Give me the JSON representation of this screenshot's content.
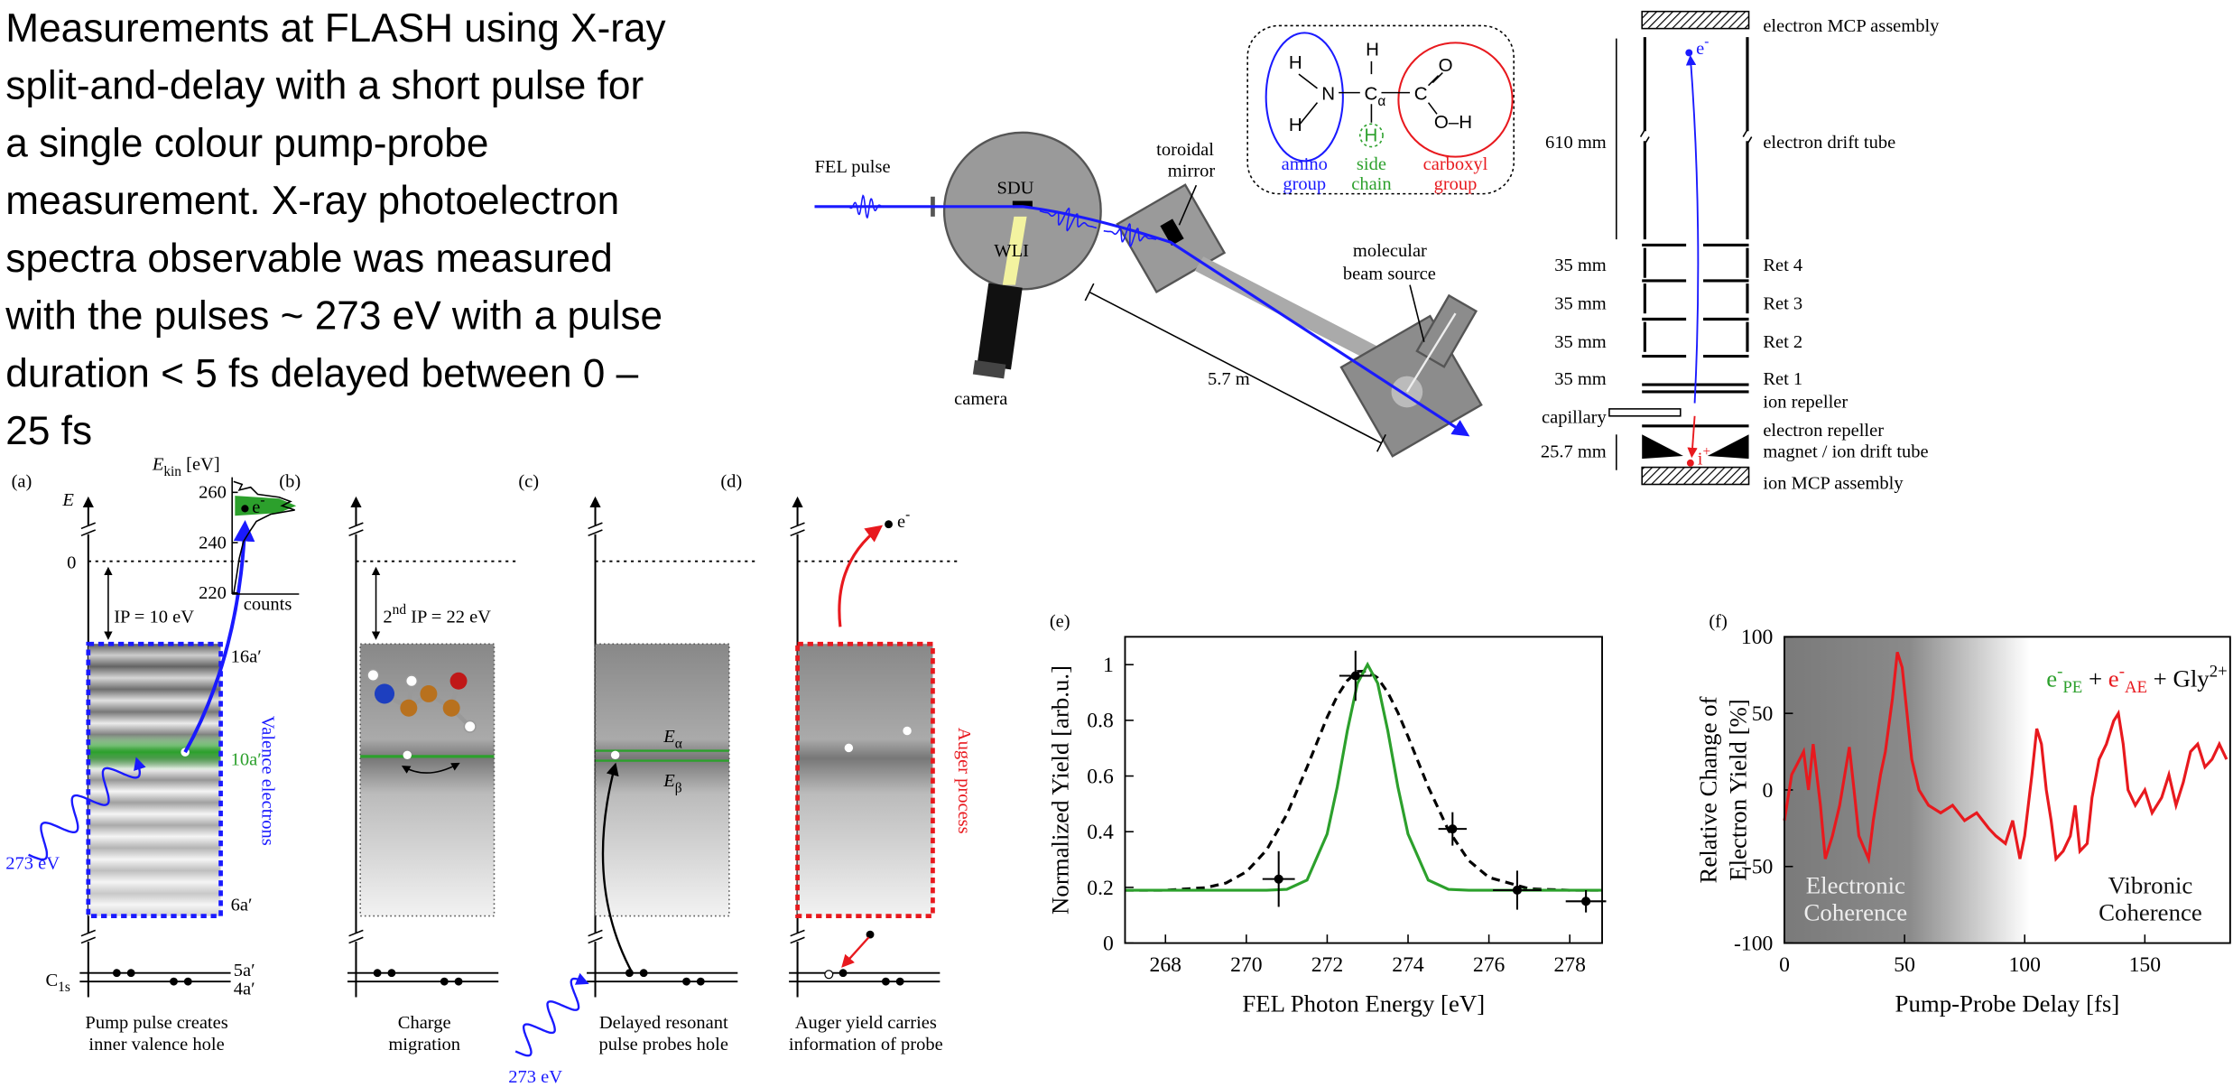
{
  "intro": {
    "lines": [
      "Measurements at FLASH using X-ray",
      "split-and-delay with a short pulse for",
      "a single colour pump-probe",
      "measurement.  X-ray photoelectron",
      "spectra observable was measured",
      "with the pulses ~ 273 eV with a pulse",
      "duration < 5 fs delayed between 0 –",
      "25 fs"
    ]
  },
  "setup": {
    "fel_pulse": "FEL pulse",
    "sdu": "SDU",
    "wli": "WLI",
    "camera": "camera",
    "toroidal_mirror": [
      "toroidal",
      "mirror"
    ],
    "molecular_beam_source": [
      "molecular",
      "beam source"
    ],
    "distance": "5.7 m",
    "molecule": {
      "atoms": [
        "H",
        "N",
        "H",
        "C",
        "α",
        "H",
        "C",
        "O",
        "O–H",
        "H"
      ],
      "groups": [
        [
          "amino",
          "group"
        ],
        [
          "side",
          "chain"
        ],
        [
          "carboxyl",
          "group"
        ]
      ]
    }
  },
  "spectrometer": {
    "right_labels": [
      "electron MCP assembly",
      "electron drift tube",
      "Ret 4",
      "Ret 3",
      "Ret 2",
      "Ret 1",
      "ion repeller",
      "electron repeller",
      "magnet / ion drift tube",
      "ion MCP assembly"
    ],
    "left_labels": [
      "610 mm",
      "35 mm",
      "35 mm",
      "35 mm",
      "35 mm",
      "capillary",
      "25.7 mm"
    ],
    "electron": {
      "main": "e",
      "sup": "-"
    },
    "ion": {
      "main": "i",
      "sup": "+"
    }
  },
  "panels": {
    "a": {
      "label": "(a)",
      "energy_axis": "E",
      "zero": "0",
      "ip": "IP = 10 eV",
      "orbitals": [
        "16a′",
        "10a′",
        "6a′"
      ],
      "core_orbitals": [
        "5a′",
        "4a′"
      ],
      "core_label": {
        "main": "C",
        "sub": "1s"
      },
      "side_label": "Valence electrons",
      "photon": "273 eV",
      "electron": {
        "main": "e",
        "sup": "-"
      },
      "caption": [
        "Pump pulse creates",
        "inner valence hole"
      ],
      "inset": {
        "axis_label": {
          "main": "E",
          "sub": "kin",
          "rest": " [eV]"
        },
        "ylim": [
          215,
          266
        ],
        "yticks": [
          260,
          240,
          220
        ],
        "counts": "counts"
      }
    },
    "b": {
      "label": "(b)",
      "ip": {
        "pre": "2",
        "sup": "nd",
        "post": " IP = 22 eV"
      },
      "caption": [
        "Charge",
        "migration"
      ]
    },
    "c": {
      "label": "(c)",
      "states": [
        {
          "main": "E",
          "sub": "α"
        },
        {
          "main": "E",
          "sub": "β"
        }
      ],
      "photon": "273 eV",
      "caption": [
        "Delayed resonant",
        "pulse probes hole"
      ]
    },
    "d": {
      "label": "(d)",
      "electron": {
        "main": "e",
        "sup": "-"
      },
      "side_label": "Auger process",
      "caption": [
        "Auger yield carries",
        "information of probe"
      ]
    }
  },
  "chart_data": [
    {
      "type": "line",
      "label": "(e)",
      "x_label": "FEL Photon Energy [eV]",
      "y_label": "Normalized Yield [arb.u.]",
      "xlim": [
        267,
        278.8
      ],
      "ylim": [
        0,
        1.1
      ],
      "xticks": [
        268,
        270,
        272,
        274,
        276,
        278
      ],
      "yticks": [
        0,
        0.2,
        0.4,
        0.6,
        0.8,
        1
      ],
      "x": [
        267,
        268,
        269,
        269.5,
        270,
        270.5,
        271,
        271.5,
        272,
        272.25,
        272.5,
        272.75,
        273,
        273.25,
        273.5,
        273.75,
        274,
        274.5,
        275,
        275.5,
        276,
        277,
        278,
        278.8
      ],
      "series": [
        {
          "color": "#000000",
          "dashed": true,
          "values": [
            0.19,
            0.19,
            0.199,
            0.216,
            0.256,
            0.334,
            0.462,
            0.632,
            0.811,
            0.887,
            0.943,
            0.975,
            0.977,
            0.952,
            0.9,
            0.828,
            0.742,
            0.561,
            0.405,
            0.297,
            0.236,
            0.195,
            0.19,
            0.19
          ]
        },
        {
          "color": "#2ca02c",
          "dashed": false,
          "values": [
            0.19,
            0.19,
            0.19,
            0.19,
            0.19,
            0.19,
            0.193,
            0.226,
            0.392,
            0.561,
            0.763,
            0.933,
            1,
            0.933,
            0.763,
            0.561,
            0.392,
            0.226,
            0.193,
            0.19,
            0.19,
            0.19,
            0.19,
            0.19
          ]
        }
      ],
      "points": {
        "color": "#000000",
        "x": [
          270.8,
          272.7,
          275.1,
          276.7,
          278.4
        ],
        "values": [
          0.23,
          0.96,
          0.41,
          0.19,
          0.15
        ],
        "x_errors": [
          0.4,
          0.4,
          0.35,
          0.6,
          0.5
        ],
        "y_errors": [
          0.1,
          0.09,
          0.06,
          0.07,
          0.04
        ]
      }
    },
    {
      "type": "line",
      "label": "(f)",
      "x_label": "Pump-Probe Delay [fs]",
      "y_label": [
        "Relative Change of",
        "Electron Yield [%]"
      ],
      "xlim": [
        0,
        185.5
      ],
      "ylim": [
        -100,
        100
      ],
      "xticks": [
        0,
        50,
        100,
        150
      ],
      "yticks": [
        -100,
        -50,
        0,
        50,
        100
      ],
      "annotations": [
        [
          "Electronic",
          "Coherence"
        ],
        [
          "Vibronic",
          "Coherence"
        ]
      ],
      "legend": [
        {
          "text": "e",
          "sup": "-",
          "sub": "PE",
          "color": "#2ca02c"
        },
        {
          "text": " + "
        },
        {
          "text": "e",
          "sup": "-",
          "sub": "AE",
          "color": "#e8191e"
        },
        {
          "text": " + Gly",
          "sup": "2+"
        }
      ],
      "x": [
        0,
        3,
        8,
        10,
        12,
        15,
        17,
        20,
        23,
        27,
        29,
        31,
        35,
        37,
        40,
        42,
        45,
        47,
        49,
        51,
        53,
        56,
        60,
        65,
        70,
        75,
        80,
        85,
        88,
        92,
        95,
        98,
        100,
        103,
        105,
        107,
        109,
        111,
        113,
        116,
        119,
        121,
        123,
        126,
        128,
        131,
        134,
        137,
        139,
        141,
        143,
        146,
        150,
        153,
        157,
        160,
        163,
        166,
        169,
        172,
        175,
        178,
        181,
        184
      ],
      "series": [
        {
          "color": "#e8191e",
          "dashed": false,
          "values": [
            -20,
            10,
            25,
            0,
            30,
            -10,
            -45,
            -30,
            -10,
            28,
            0,
            -30,
            -45,
            -20,
            10,
            25,
            60,
            90,
            80,
            50,
            20,
            0,
            -10,
            -15,
            -10,
            -20,
            -15,
            -25,
            -30,
            -35,
            -20,
            -45,
            -30,
            10,
            40,
            30,
            0,
            -20,
            -45,
            -40,
            -30,
            -10,
            -40,
            -35,
            -5,
            20,
            30,
            45,
            50,
            30,
            0,
            -10,
            0,
            -15,
            -5,
            10,
            -10,
            5,
            25,
            30,
            15,
            20,
            30,
            20
          ]
        }
      ]
    }
  ]
}
